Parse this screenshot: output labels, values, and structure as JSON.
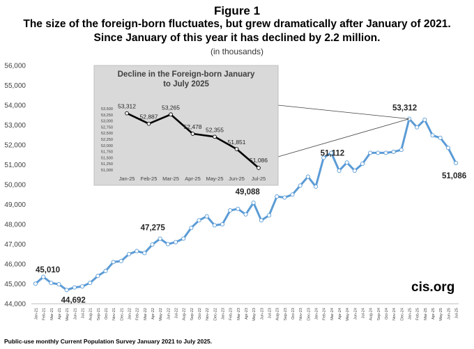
{
  "figure": {
    "title": "Figure 1",
    "subtitle": "The size of the foreign-born fluctuates, but grew dramatically after January of 2021. Since January of this year it has declined by 2.2 million.",
    "units": "(in thousands)",
    "brand": "cis.org",
    "source": "Public-use monthly Current Population Survey January 2021 to July 2025.",
    "colors": {
      "main_line": "#5b9bd5",
      "inset_line": "#000000",
      "inset_bg": "#d9d9d9"
    }
  },
  "chart_data": [
    {
      "type": "line",
      "title": "",
      "xlabel": "",
      "ylabel": "",
      "ylim": [
        44000,
        56000
      ],
      "yticks": [
        "44,000",
        "45,000",
        "46,000",
        "47,000",
        "48,000",
        "49,000",
        "50,000",
        "51,000",
        "52,000",
        "53,000",
        "54,000",
        "55,000",
        "56,000"
      ],
      "categories": [
        "Jan-21",
        "Feb-21",
        "Mar-21",
        "Apr-21",
        "May-21",
        "Jun-21",
        "Jul-21",
        "Aug-21",
        "Sep-21",
        "Oct-21",
        "Nov-21",
        "Dec-21",
        "Jan-22",
        "Feb-22",
        "Mar-22",
        "Apr-22",
        "May-22",
        "Jun-22",
        "Jul-22",
        "Aug-22",
        "Sep-22",
        "Oct-22",
        "Nov-22",
        "Dec-22",
        "Jan-23",
        "Feb-23",
        "Mar-23",
        "Apr-23",
        "May-23",
        "Jun-23",
        "Jul-23",
        "Aug-23",
        "Sep-23",
        "Oct-23",
        "Nov-23",
        "Dec-23",
        "Jan-24",
        "Feb-24",
        "Mar-24",
        "Apr-24",
        "May-24",
        "Jun-24",
        "Jul-24",
        "Aug-24",
        "Sep-24",
        "Oct-24",
        "Nov-24",
        "Dec-24",
        "Jan-25",
        "Feb-25",
        "Mar-25",
        "Apr-25",
        "May-25",
        "Jun-25",
        "Jul-25"
      ],
      "series": [
        {
          "values": [
            45010,
            45350,
            45050,
            44980,
            44692,
            44820,
            44870,
            45050,
            45400,
            45650,
            46100,
            46150,
            46500,
            46650,
            46550,
            46980,
            47275,
            47000,
            47100,
            47280,
            47820,
            48200,
            48400,
            47950,
            48000,
            48700,
            48780,
            48500,
            49088,
            48200,
            48450,
            49400,
            49350,
            49500,
            49950,
            50400,
            49900,
            51350,
            51600,
            50700,
            51112,
            50700,
            51050,
            51600,
            51600,
            51600,
            51650,
            51750,
            53312,
            52887,
            53265,
            52478,
            52355,
            51851,
            51086
          ]
        }
      ],
      "annotations": [
        {
          "x": "Jan-21",
          "label": "45,010"
        },
        {
          "x": "May-21",
          "label": "44,692"
        },
        {
          "x": "May-22",
          "label": "47,275"
        },
        {
          "x": "May-23",
          "label": "49,088"
        },
        {
          "x": "May-24",
          "label": "51,112"
        },
        {
          "x": "Jan-25",
          "label": "53,312"
        },
        {
          "x": "Jul-25",
          "label": "51,086"
        }
      ]
    },
    {
      "type": "line",
      "title": "Decline in the Foreign-born January to July 2025",
      "xlabel": "",
      "ylabel": "",
      "ylim": [
        51000,
        53500
      ],
      "yticks": [
        "51,000",
        "51,250",
        "51,500",
        "51,750",
        "52,000",
        "52,250",
        "52,500",
        "52,750",
        "53,000",
        "53,250",
        "53,500"
      ],
      "categories": [
        "Jan-25",
        "Feb-25",
        "Mar-25",
        "Apr-25",
        "May-25",
        "Jun-25",
        "Jul-25"
      ],
      "series": [
        {
          "values": [
            53312,
            52887,
            53265,
            52478,
            52355,
            51851,
            51086
          ],
          "labels": [
            "53,312",
            "52,887",
            "53,265",
            "52,478",
            "52,355",
            "51,851",
            "51,086"
          ]
        }
      ]
    }
  ]
}
